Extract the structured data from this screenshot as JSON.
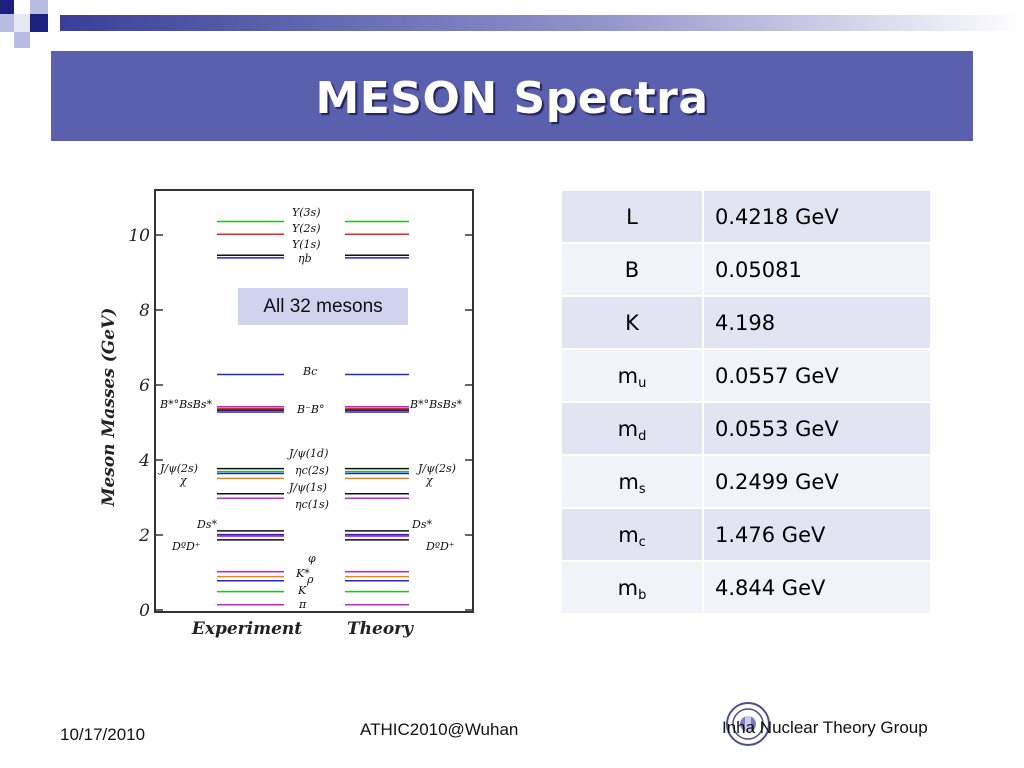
{
  "slide": {
    "title": "MESON Spectra",
    "badge": "All 32 mesons",
    "parameters": [
      {
        "name": "L",
        "sub": "",
        "value": "0.4218 GeV"
      },
      {
        "name": "B",
        "sub": "",
        "value": "0.05081"
      },
      {
        "name": "K",
        "sub": "",
        "value": "4.198"
      },
      {
        "name": "m",
        "sub": "u",
        "value": "0.0557 GeV"
      },
      {
        "name": "m",
        "sub": "d",
        "value": "0.0553 GeV"
      },
      {
        "name": "m",
        "sub": "s",
        "value": "0.2499 GeV"
      },
      {
        "name": "m",
        "sub": "c",
        "value": "1.476 GeV"
      },
      {
        "name": "m",
        "sub": "b",
        "value": "4.844 GeV"
      }
    ],
    "footer": {
      "date": "10/17/2010",
      "conference": "ATHIC2010@Wuhan",
      "group": "Inha Nuclear Theory Group"
    }
  },
  "colors": {
    "title_bg": "#5a5fae",
    "table_row_a": "#e3e4f2",
    "table_row_b": "#f2f2f9",
    "badge_bg": "#cfd3ee"
  },
  "chart_data": {
    "type": "level-diagram",
    "ylabel": "Meson Masses (GeV)",
    "xlabel_left": "Experiment",
    "xlabel_right": "Theory",
    "ylim": [
      0,
      11
    ],
    "yticks": [
      "0",
      "2",
      "4",
      "6",
      "8",
      "10"
    ],
    "levels": [
      {
        "label": "Υ(3s)",
        "mass": 10.36,
        "color": "#22bb22"
      },
      {
        "label": "Υ(2s)",
        "mass": 10.02,
        "color": "#ee2222"
      },
      {
        "label": "Υ(1s)",
        "mass": 9.46,
        "color": "#111111"
      },
      {
        "label": "ηb",
        "mass": 9.39,
        "color": "#2222dd"
      },
      {
        "label": "Bc",
        "mass": 6.28,
        "color": "#2222dd"
      },
      {
        "label": "Bs*",
        "mass": 5.42,
        "color": "#cc22cc"
      },
      {
        "label": "Bs",
        "mass": 5.37,
        "color": "#ee2222"
      },
      {
        "label": "B*",
        "mass": 5.33,
        "color": "#111111"
      },
      {
        "label": "B",
        "mass": 5.28,
        "color": "#2222dd"
      },
      {
        "label": "J/ψ(1d)",
        "mass": 3.77,
        "color": "#111111"
      },
      {
        "label": "ηc(2s)",
        "mass": 3.64,
        "color": "#2222dd"
      },
      {
        "label": "J/ψ(2s)",
        "mass": 3.69,
        "color": "#22bb22"
      },
      {
        "label": "χ",
        "mass": 3.51,
        "color": "#ee8800"
      },
      {
        "label": "J/ψ(1s)",
        "mass": 3.1,
        "color": "#111111"
      },
      {
        "label": "ηc(1s)",
        "mass": 2.98,
        "color": "#cc22cc"
      },
      {
        "label": "Ds*",
        "mass": 2.11,
        "color": "#111111"
      },
      {
        "label": "Ds",
        "mass": 1.97,
        "color": "#cc22cc"
      },
      {
        "label": "D*",
        "mass": 2.01,
        "color": "#2222dd"
      },
      {
        "label": "D",
        "mass": 1.87,
        "color": "#111111"
      },
      {
        "label": "φ",
        "mass": 1.02,
        "color": "#cc22cc"
      },
      {
        "label": "K*",
        "mass": 0.89,
        "color": "#ee8800"
      },
      {
        "label": "ρ",
        "mass": 0.78,
        "color": "#2222dd"
      },
      {
        "label": "K",
        "mass": 0.49,
        "color": "#22bb22"
      },
      {
        "label": "π",
        "mass": 0.14,
        "color": "#cc22cc"
      }
    ]
  }
}
